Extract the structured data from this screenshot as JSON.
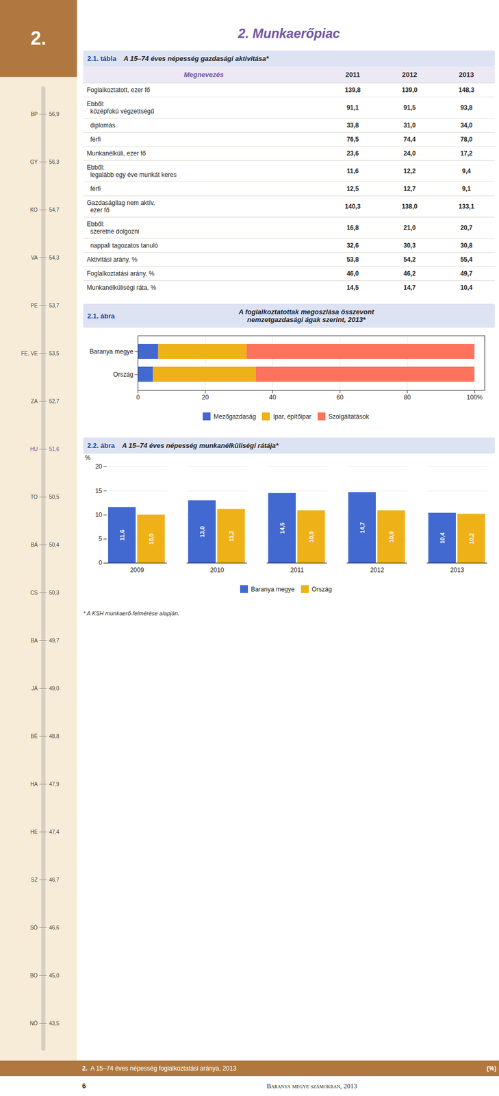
{
  "page_title": "2. Munkaerőpiac",
  "section": "2.",
  "footnote": "* A KSH munkaerő-felmérése alapján.",
  "page_number": "6",
  "footer": "Baranya megye számokban, 2013",
  "chart_data": [
    {
      "type": "ranking",
      "title": "A 15–74 éves népesség foglalkoztatási aránya, 2013",
      "annotations": [
        "2."
      ],
      "subtitle": "(%)",
      "categories": [
        "BP",
        "GY",
        "KO",
        "VA",
        "PE",
        "FE, VE",
        "ZA",
        "HU",
        "TO",
        "BÁ",
        "CS",
        "BA",
        "JÁ",
        "BÉ",
        "HA",
        "HE",
        "SZ",
        "SÓ",
        "BO",
        "NÓ"
      ],
      "values": [
        56.9,
        56.3,
        54.7,
        54.3,
        53.7,
        53.5,
        52.7,
        51.6,
        50.5,
        50.4,
        50.3,
        49.7,
        49.0,
        48.8,
        47.9,
        47.4,
        46.7,
        46.6,
        45.0,
        43.5
      ],
      "value_labels": [
        "56,9",
        "56,3",
        "54,7",
        "54,3",
        "53,7",
        "53,5",
        "52,7",
        "51,6",
        "50,5",
        "50,4",
        "50,3",
        "49,7",
        "49,0",
        "48,8",
        "47,9",
        "47,4",
        "46,7",
        "46,6",
        "45,0",
        "43,5"
      ],
      "colors": [
        "#444444",
        "#444444",
        "#444444",
        "#444444",
        "#444444",
        "#444444",
        "#444444",
        "#7055a0",
        "#444444",
        "#444444",
        "#444444",
        "#444444",
        "#444444",
        "#444444",
        "#444444",
        "#444444",
        "#444444",
        "#444444",
        "#444444",
        "#444444"
      ]
    },
    {
      "type": "table",
      "title": "A 15–74 éves népesség gazdasági aktivitása*",
      "annotations": [
        "2.1. tábla"
      ],
      "columns": [
        "Megnevezés",
        "2011",
        "2012",
        "2013"
      ],
      "rows": [
        {
          "label": [
            "Foglalkoztatott, ezer fő"
          ],
          "values": [
            "139,8",
            "139,0",
            "148,3"
          ]
        },
        {
          "label": [
            "Ebből:",
            "  középfokú végzettségű"
          ],
          "values": [
            "91,1",
            "91,5",
            "93,8"
          ]
        },
        {
          "label": [
            "  diplomás"
          ],
          "values": [
            "33,8",
            "31,0",
            "34,0"
          ]
        },
        {
          "label": [
            "  férfi"
          ],
          "values": [
            "76,5",
            "74,4",
            "78,0"
          ]
        },
        {
          "label": [
            "Munkanélküli, ezer fő"
          ],
          "values": [
            "23,6",
            "24,0",
            "17,2"
          ]
        },
        {
          "label": [
            "Ebből:",
            "  legalább egy éve munkát keres"
          ],
          "values": [
            "11,6",
            "12,2",
            "9,4"
          ]
        },
        {
          "label": [
            "  férfi"
          ],
          "values": [
            "12,5",
            "12,7",
            "9,1"
          ]
        },
        {
          "label": [
            "Gazdaságilag nem aktív,",
            "  ezer fő"
          ],
          "values": [
            "140,3",
            "138,0",
            "133,1"
          ]
        },
        {
          "label": [
            "Ebből:",
            "  szeretne dolgozni"
          ],
          "values": [
            "16,8",
            "21,0",
            "20,7"
          ]
        },
        {
          "label": [
            "  nappali tagozatos tanuló"
          ],
          "values": [
            "32,6",
            "30,3",
            "30,8"
          ]
        },
        {
          "label": [
            "Aktivitási arány, %"
          ],
          "values": [
            "53,8",
            "54,2",
            "55,4"
          ]
        },
        {
          "label": [
            "Foglalkoztatási arány, %"
          ],
          "values": [
            "46,0",
            "46,2",
            "49,7"
          ]
        },
        {
          "label": [
            "Munkanélküliségi ráta, %"
          ],
          "values": [
            "14,5",
            "14,7",
            "10,4"
          ]
        }
      ]
    },
    {
      "type": "bar",
      "orientation": "horizontal",
      "stacked": true,
      "title": "A foglalkoztatottak megoszlása összevont\nnemzetgazdasági ágak szerint, 2013*",
      "annotations": [
        "2.1. ábra"
      ],
      "categories": [
        "Baranya megye",
        "Ország"
      ],
      "series": [
        {
          "name": "Mezőgazdaság",
          "values": [
            6.1,
            4.5
          ]
        },
        {
          "name": "Ipar, építőipar",
          "values": [
            26.2,
            30.5
          ]
        },
        {
          "name": "Szolgáltatások",
          "values": [
            67.7,
            65.0
          ]
        }
      ],
      "xlim": [
        0,
        103
      ],
      "xticks": [
        0,
        20,
        40,
        60,
        80,
        {
          "value": 100,
          "label": "100%"
        }
      ],
      "grid": true,
      "legend": "bottom"
    },
    {
      "type": "bar",
      "title": "A 15–74 éves népesség munkanélküliségi rátája*",
      "annotations": [
        "2.2. ábra"
      ],
      "categories": [
        "2009",
        "2010",
        "2011",
        "2012",
        "2013"
      ],
      "series": [
        {
          "name": "Baranya megye",
          "values": [
            11.6,
            13.0,
            14.5,
            14.7,
            10.4
          ],
          "value_labels": [
            "11,6",
            "13,0",
            "14,5",
            "14,7",
            "10,4"
          ]
        },
        {
          "name": "Ország",
          "values": [
            10.0,
            11.2,
            10.9,
            10.9,
            10.2
          ],
          "value_labels": [
            "10,0",
            "11,2",
            "10,9",
            "10,9",
            "10,2"
          ]
        }
      ],
      "ylim": [
        0,
        20
      ],
      "yticks": [
        0,
        5,
        10,
        15,
        20
      ],
      "ylabel": "%",
      "grid": true,
      "data_labels": true,
      "legend": "bottom"
    }
  ]
}
